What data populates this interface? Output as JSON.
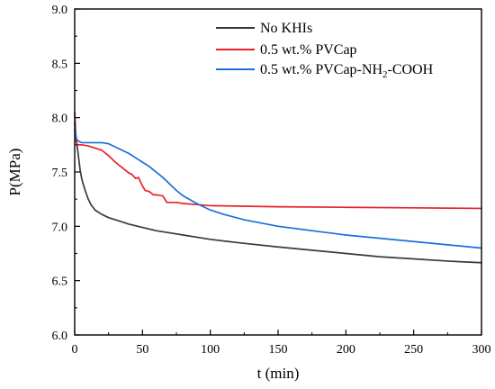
{
  "chart_data": {
    "type": "line",
    "title": "",
    "xlabel": "t (min)",
    "ylabel": "P(MPa)",
    "xlim": [
      0,
      300
    ],
    "ylim": [
      6.0,
      9.0
    ],
    "xticks": [
      0,
      50,
      100,
      150,
      200,
      250,
      300
    ],
    "yticks": [
      6.0,
      6.5,
      7.0,
      7.5,
      8.0,
      8.5,
      9.0
    ],
    "xtick_labels": [
      "0",
      "50",
      "100",
      "150",
      "200",
      "250",
      "300"
    ],
    "ytick_labels": [
      "6.0",
      "6.5",
      "7.0",
      "7.5",
      "8.0",
      "8.5",
      "9.0"
    ],
    "grid": false,
    "legend_position": "top-right",
    "series": [
      {
        "name": "No KHIs",
        "color": "#3a3a3a",
        "x": [
          0,
          1,
          2,
          3,
          4,
          5,
          6,
          8,
          10,
          12,
          15,
          20,
          25,
          30,
          40,
          50,
          60,
          70,
          80,
          100,
          120,
          150,
          175,
          200,
          225,
          250,
          275,
          300
        ],
        "y": [
          7.95,
          7.82,
          7.72,
          7.62,
          7.52,
          7.45,
          7.4,
          7.32,
          7.25,
          7.2,
          7.15,
          7.11,
          7.08,
          7.06,
          7.02,
          6.99,
          6.96,
          6.94,
          6.92,
          6.88,
          6.85,
          6.81,
          6.78,
          6.75,
          6.72,
          6.7,
          6.68,
          6.665
        ]
      },
      {
        "name": "0.5 wt.% PVCap",
        "color": "#e8212a",
        "x": [
          0,
          1,
          2,
          5,
          10,
          20,
          25,
          30,
          35,
          40,
          42,
          45,
          47,
          50,
          52,
          55,
          58,
          60,
          65,
          68,
          70,
          75,
          80,
          90,
          100,
          150,
          200,
          250,
          300
        ],
        "y": [
          8.05,
          7.78,
          7.75,
          7.75,
          7.74,
          7.7,
          7.65,
          7.59,
          7.54,
          7.49,
          7.48,
          7.44,
          7.45,
          7.37,
          7.33,
          7.32,
          7.29,
          7.29,
          7.28,
          7.22,
          7.22,
          7.22,
          7.21,
          7.2,
          7.19,
          7.18,
          7.175,
          7.17,
          7.165
        ]
      },
      {
        "name": "0.5 wt.% PVCap-NH2-COOH",
        "color": "#1a6fd8",
        "x": [
          0,
          1,
          2,
          5,
          10,
          15,
          20,
          25,
          30,
          35,
          40,
          45,
          50,
          55,
          60,
          65,
          70,
          75,
          80,
          90,
          100,
          110,
          125,
          150,
          175,
          200,
          225,
          250,
          275,
          300
        ],
        "y": [
          7.95,
          7.82,
          7.79,
          7.77,
          7.77,
          7.77,
          7.77,
          7.76,
          7.73,
          7.7,
          7.67,
          7.63,
          7.59,
          7.55,
          7.5,
          7.45,
          7.39,
          7.33,
          7.28,
          7.21,
          7.15,
          7.11,
          7.06,
          7.0,
          6.96,
          6.92,
          6.89,
          6.86,
          6.83,
          6.8
        ]
      }
    ]
  },
  "legend": {
    "labels": {
      "no_khis": "No KHIs",
      "pvcap": "0.5 wt.% PVCap",
      "pvcap_mod_prefix": "0.5 wt.% PVCap-NH",
      "pvcap_mod_sub": "2",
      "pvcap_mod_suffix": "-COOH"
    }
  }
}
